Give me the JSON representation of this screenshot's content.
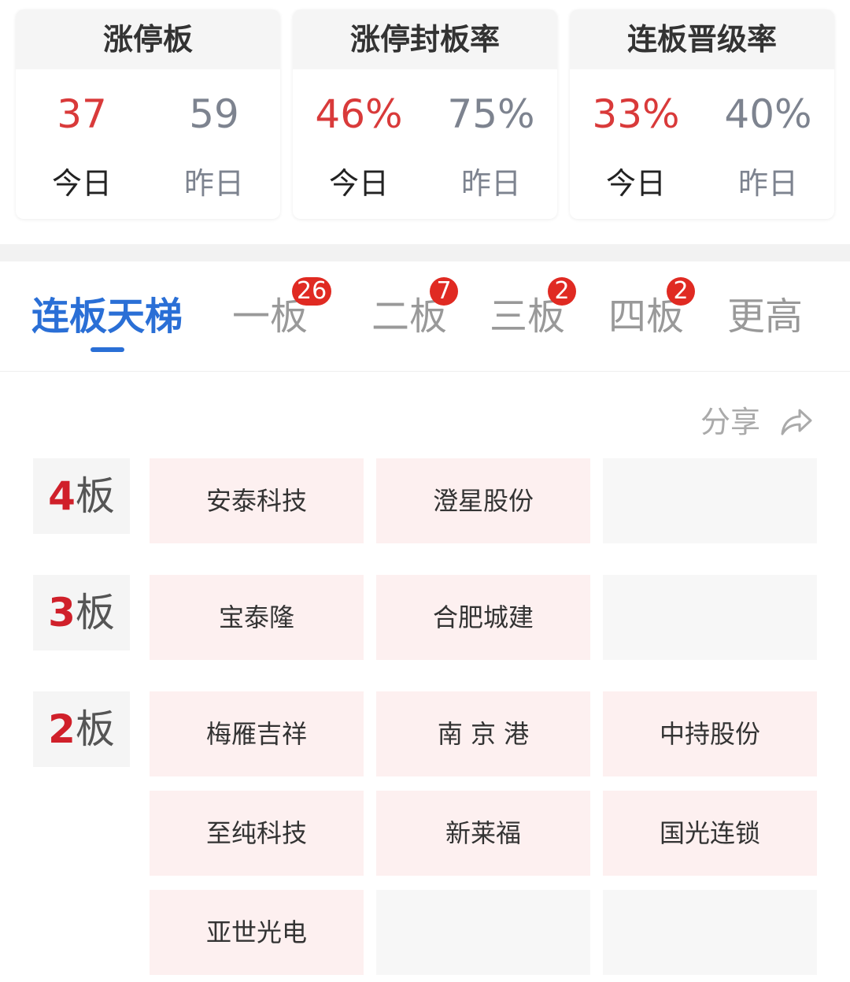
{
  "stats": [
    {
      "title": "涨停板",
      "today": "37",
      "yesterday": "59",
      "today_label": "今日",
      "yesterday_label": "昨日"
    },
    {
      "title": "涨停封板率",
      "today": "46%",
      "yesterday": "75%",
      "today_label": "今日",
      "yesterday_label": "昨日"
    },
    {
      "title": "连板晋级率",
      "today": "33%",
      "yesterday": "40%",
      "today_label": "今日",
      "yesterday_label": "昨日"
    }
  ],
  "tabs": [
    {
      "label": "连板天梯",
      "badge": null,
      "active": true
    },
    {
      "label": "一板",
      "badge": "26"
    },
    {
      "label": "二板",
      "badge": "7"
    },
    {
      "label": "三板",
      "badge": "2"
    },
    {
      "label": "四板",
      "badge": "2"
    },
    {
      "label": "更高",
      "badge": null
    }
  ],
  "share_label": "分享",
  "levels": [
    {
      "num": "4",
      "unit": "板",
      "stocks": [
        "安泰科技",
        "澄星股份"
      ]
    },
    {
      "num": "3",
      "unit": "板",
      "stocks": [
        "宝泰隆",
        "合肥城建"
      ]
    },
    {
      "num": "2",
      "unit": "板",
      "stocks": [
        "梅雁吉祥",
        "南 京 港",
        "中持股份",
        "至纯科技",
        "新莱福",
        "国光连锁",
        "亚世光电"
      ]
    }
  ],
  "colors": {
    "up": "#d93a3a",
    "accent": "#2a6fd6",
    "badge": "#e02a22",
    "cell": "#fdf0f0"
  }
}
